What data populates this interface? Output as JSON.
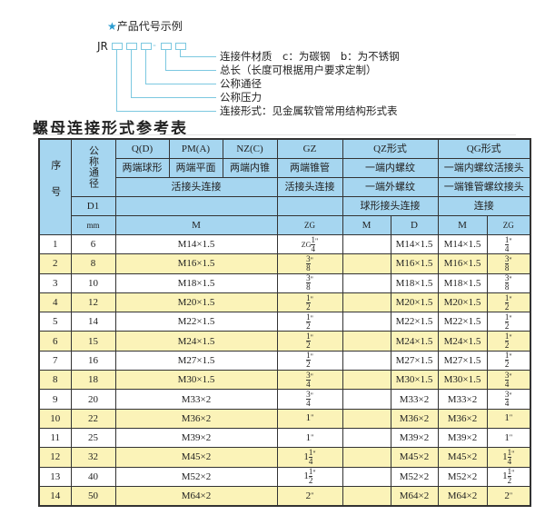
{
  "example": {
    "title": "产品代号示例",
    "code_prefix": "JR",
    "dash": "-",
    "labels": [
      "连接件材质　c：为碳钢　b：为不锈钢",
      "总长（长度可根据用户要求定制）",
      "公称通径",
      "公称压力",
      "连接形式：见金属软管常用结构形式表"
    ],
    "accent_color": "#7cc8e0"
  },
  "table_title": "螺母连接形式参考表",
  "header": {
    "seq": "序号",
    "nominal": "公称通径",
    "d1": "D1",
    "mm": "mm",
    "row1": [
      "Q(D)",
      "PM(A)",
      "NZ(C)",
      "GZ",
      "QZ形式",
      "QG形式"
    ],
    "row2": [
      "两端球形",
      "两端平面",
      "两端内锥",
      "两端锥管",
      "一端内螺纹",
      "一端内螺纹活接头"
    ],
    "row3": [
      "活接头连接",
      "活接头连接",
      "一端外螺纹",
      "一端锥管螺纹接头"
    ],
    "row4": [
      "球形接头连接",
      "连接"
    ],
    "row5": [
      "M",
      "ZG",
      "M",
      "D",
      "M",
      "ZG"
    ]
  },
  "rows": [
    {
      "n": "1",
      "dn": "6",
      "m": "M14×1.5",
      "zg": {
        "pre": "ZG",
        "w": "",
        "num": "1",
        "den": "4",
        "q": "\""
      },
      "qz_m": "",
      "qz_d": "M14×1.5",
      "qg_m": "M14×1.5",
      "qg_zg": {
        "pre": "",
        "w": "",
        "num": "1",
        "den": "4",
        "q": "\""
      }
    },
    {
      "n": "2",
      "dn": "8",
      "m": "M16×1.5",
      "zg": {
        "pre": "",
        "w": "",
        "num": "3",
        "den": "8",
        "q": "\""
      },
      "qz_m": "",
      "qz_d": "M16×1.5",
      "qg_m": "M16×1.5",
      "qg_zg": {
        "pre": "",
        "w": "",
        "num": "3",
        "den": "8",
        "q": "\""
      }
    },
    {
      "n": "3",
      "dn": "10",
      "m": "M18×1.5",
      "zg": {
        "pre": "",
        "w": "",
        "num": "3",
        "den": "8",
        "q": "\""
      },
      "qz_m": "",
      "qz_d": "M18×1.5",
      "qg_m": "M18×1.5",
      "qg_zg": {
        "pre": "",
        "w": "",
        "num": "3",
        "den": "8",
        "q": "\""
      }
    },
    {
      "n": "4",
      "dn": "12",
      "m": "M20×1.5",
      "zg": {
        "pre": "",
        "w": "",
        "num": "1",
        "den": "2",
        "q": "\""
      },
      "qz_m": "",
      "qz_d": "M20×1.5",
      "qg_m": "M20×1.5",
      "qg_zg": {
        "pre": "",
        "w": "",
        "num": "1",
        "den": "2",
        "q": "\""
      }
    },
    {
      "n": "5",
      "dn": "14",
      "m": "M22×1.5",
      "zg": {
        "pre": "",
        "w": "",
        "num": "1",
        "den": "2",
        "q": "\""
      },
      "qz_m": "",
      "qz_d": "M22×1.5",
      "qg_m": "M22×1.5",
      "qg_zg": {
        "pre": "",
        "w": "",
        "num": "1",
        "den": "2",
        "q": "\""
      }
    },
    {
      "n": "6",
      "dn": "15",
      "m": "M24×1.5",
      "zg": {
        "pre": "",
        "w": "",
        "num": "1",
        "den": "2",
        "q": "\""
      },
      "qz_m": "",
      "qz_d": "M24×1.5",
      "qg_m": "M24×1.5",
      "qg_zg": {
        "pre": "",
        "w": "",
        "num": "1",
        "den": "2",
        "q": "\""
      }
    },
    {
      "n": "7",
      "dn": "16",
      "m": "M27×1.5",
      "zg": {
        "pre": "",
        "w": "",
        "num": "1",
        "den": "2",
        "q": "\""
      },
      "qz_m": "",
      "qz_d": "M27×1.5",
      "qg_m": "M27×1.5",
      "qg_zg": {
        "pre": "",
        "w": "",
        "num": "1",
        "den": "2",
        "q": "\""
      }
    },
    {
      "n": "8",
      "dn": "18",
      "m": "M30×1.5",
      "zg": {
        "pre": "",
        "w": "",
        "num": "3",
        "den": "4",
        "q": "\""
      },
      "qz_m": "",
      "qz_d": "M30×1.5",
      "qg_m": "M30×1.5",
      "qg_zg": {
        "pre": "",
        "w": "",
        "num": "3",
        "den": "4",
        "q": "\""
      }
    },
    {
      "n": "9",
      "dn": "20",
      "m": "M33×2",
      "zg": {
        "pre": "",
        "w": "",
        "num": "3",
        "den": "4",
        "q": "\""
      },
      "qz_m": "",
      "qz_d": "M33×2",
      "qg_m": "M33×2",
      "qg_zg": {
        "pre": "",
        "w": "",
        "num": "3",
        "den": "4",
        "q": "\""
      }
    },
    {
      "n": "10",
      "dn": "22",
      "m": "M36×2",
      "zg": {
        "pre": "",
        "w": "1",
        "num": "",
        "den": "",
        "q": "\""
      },
      "qz_m": "",
      "qz_d": "M36×2",
      "qg_m": "M36×2",
      "qg_zg": {
        "pre": "",
        "w": "1",
        "num": "",
        "den": "",
        "q": "\""
      }
    },
    {
      "n": "11",
      "dn": "25",
      "m": "M39×2",
      "zg": {
        "pre": "",
        "w": "1",
        "num": "",
        "den": "",
        "q": "\""
      },
      "qz_m": "",
      "qz_d": "M39×2",
      "qg_m": "M39×2",
      "qg_zg": {
        "pre": "",
        "w": "1",
        "num": "",
        "den": "",
        "q": "\""
      }
    },
    {
      "n": "12",
      "dn": "32",
      "m": "M45×2",
      "zg": {
        "pre": "",
        "w": "1",
        "num": "1",
        "den": "4",
        "q": "\""
      },
      "qz_m": "",
      "qz_d": "M45×2",
      "qg_m": "M45×2",
      "qg_zg": {
        "pre": "",
        "w": "1",
        "num": "1",
        "den": "4",
        "q": "\""
      }
    },
    {
      "n": "13",
      "dn": "40",
      "m": "M52×2",
      "zg": {
        "pre": "",
        "w": "1",
        "num": "1",
        "den": "2",
        "q": "\""
      },
      "qz_m": "",
      "qz_d": "M52×2",
      "qg_m": "M52×2",
      "qg_zg": {
        "pre": "",
        "w": "1",
        "num": "1",
        "den": "2",
        "q": "\""
      }
    },
    {
      "n": "14",
      "dn": "50",
      "m": "M64×2",
      "zg": {
        "pre": "",
        "w": "2",
        "num": "",
        "den": "",
        "q": "\""
      },
      "qz_m": "",
      "qz_d": "M64×2",
      "qg_m": "M64×2",
      "qg_zg": {
        "pre": "",
        "w": "2",
        "num": "",
        "den": "",
        "q": "\""
      }
    }
  ],
  "colors": {
    "header_bg": "#a6d6f0",
    "stripe_bg": "#fbf3b8"
  }
}
